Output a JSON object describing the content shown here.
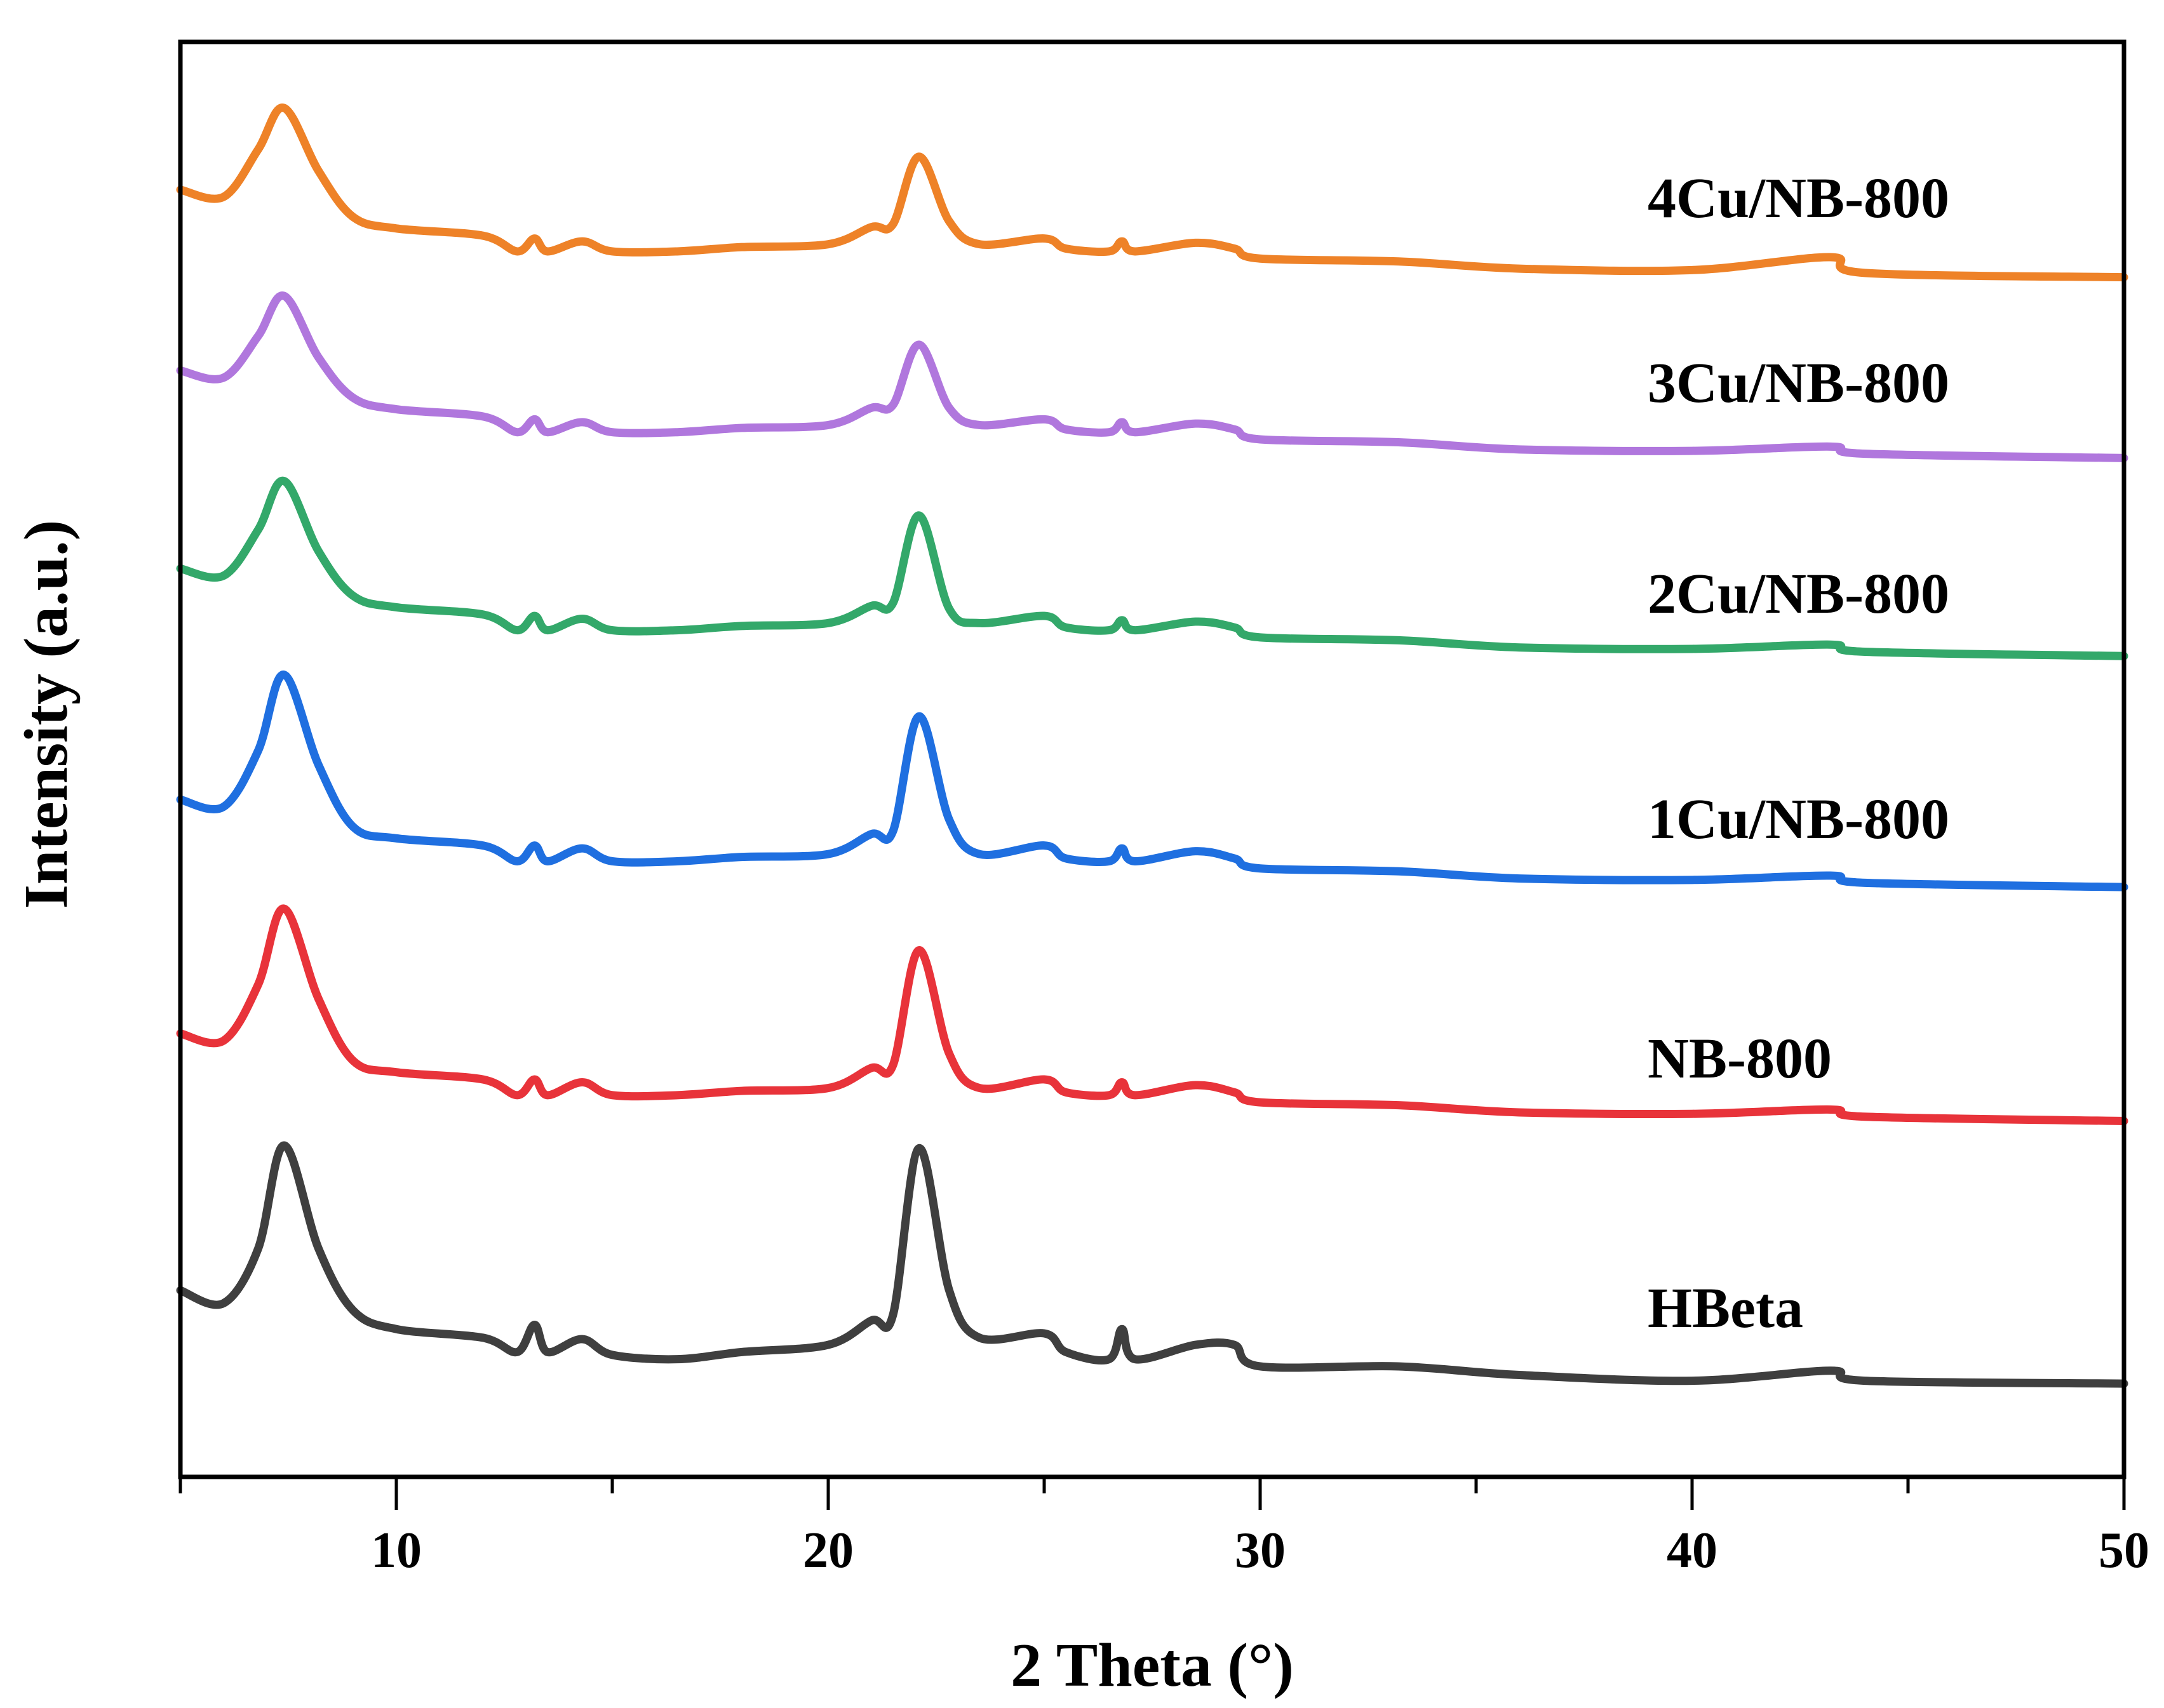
{
  "chart_data": {
    "type": "line",
    "title": "",
    "xlabel": "2 Theta (°)",
    "ylabel": "Intensity (a.u.)",
    "xlim": [
      5,
      50
    ],
    "ylim": [
      0,
      100
    ],
    "x_ticks": [
      10,
      20,
      30,
      40,
      50
    ],
    "x_minor_ticks": [
      5,
      15,
      25,
      35,
      45
    ],
    "y_ticks": [],
    "grid": false,
    "legend": "inline labels at right, above each trace",
    "x": [
      5,
      6,
      6.8,
      7.4,
      8.2,
      9,
      10,
      12,
      12.8,
      13.2,
      13.5,
      14.3,
      15,
      16.5,
      18,
      20,
      21,
      21.5,
      22.1,
      22.8,
      23.5,
      25,
      25.5,
      26.5,
      26.8,
      27.1,
      28.5,
      29.4,
      30,
      33.2,
      36,
      40,
      43.2,
      44,
      50
    ],
    "series": [
      {
        "name": "HBeta",
        "color": "#3f3f3f",
        "values": [
          13.0,
          12.1,
          15.9,
          23.1,
          15.9,
          11.6,
          10.3,
          9.7,
          8.7,
          10.6,
          8.7,
          9.6,
          8.5,
          8.2,
          8.7,
          9.2,
          10.9,
          11.3,
          22.9,
          13.0,
          9.7,
          10.0,
          8.7,
          8.2,
          10.3,
          8.2,
          9.2,
          9.2,
          7.7,
          7.7,
          7.1,
          6.7,
          7.4,
          6.7,
          6.5
        ]
      },
      {
        "name": "NB-800",
        "color": "#e8333a",
        "values": [
          30.9,
          30.4,
          34.3,
          39.6,
          33.3,
          29.0,
          28.2,
          27.7,
          26.6,
          27.7,
          26.6,
          27.5,
          26.6,
          26.6,
          26.9,
          27.1,
          28.5,
          28.7,
          36.7,
          29.5,
          27.1,
          27.7,
          26.8,
          26.6,
          27.5,
          26.6,
          27.3,
          26.8,
          26.1,
          25.9,
          25.4,
          25.3,
          25.6,
          25.1,
          24.8
        ]
      },
      {
        "name": "1Cu/NB-800",
        "color": "#1f6fe0",
        "values": [
          47.2,
          46.7,
          50.6,
          55.9,
          49.6,
          45.3,
          44.5,
          44.0,
          42.9,
          44.0,
          42.9,
          43.8,
          42.9,
          42.9,
          43.2,
          43.4,
          44.8,
          45.0,
          53.0,
          45.8,
          43.4,
          44.0,
          43.1,
          42.9,
          43.8,
          42.9,
          43.6,
          43.1,
          42.4,
          42.2,
          41.7,
          41.6,
          41.9,
          41.4,
          41.1
        ]
      },
      {
        "name": "2Cu/NB-800",
        "color": "#33a86a",
        "values": [
          63.3,
          62.8,
          66.0,
          69.4,
          64.5,
          61.4,
          60.6,
          60.1,
          59.0,
          60.0,
          59.0,
          59.8,
          59.0,
          59.0,
          59.3,
          59.5,
          60.7,
          60.9,
          67.0,
          60.5,
          59.5,
          60.0,
          59.2,
          59.0,
          59.7,
          59.0,
          59.6,
          59.2,
          58.5,
          58.3,
          57.8,
          57.7,
          58.0,
          57.5,
          57.2
        ]
      },
      {
        "name": "3Cu/NB-800",
        "color": "#b077dd",
        "values": [
          77.1,
          76.6,
          79.5,
          82.3,
          78.0,
          75.2,
          74.4,
          73.9,
          72.8,
          73.7,
          72.8,
          73.5,
          72.8,
          72.8,
          73.1,
          73.3,
          74.5,
          74.7,
          78.9,
          74.5,
          73.3,
          73.7,
          73.0,
          72.8,
          73.5,
          72.8,
          73.4,
          73.0,
          72.3,
          72.1,
          71.6,
          71.5,
          71.8,
          71.3,
          71.0
        ]
      },
      {
        "name": "4Cu/NB-800",
        "color": "#ee8228",
        "values": [
          89.7,
          89.2,
          92.5,
          95.4,
          91.0,
          87.8,
          87.0,
          86.5,
          85.4,
          86.3,
          85.4,
          86.1,
          85.4,
          85.4,
          85.7,
          85.9,
          87.1,
          87.3,
          92.0,
          87.5,
          85.9,
          86.3,
          85.6,
          85.4,
          86.1,
          85.4,
          86.0,
          85.6,
          84.9,
          84.7,
          84.2,
          84.1,
          85.0,
          83.9,
          83.6
        ]
      }
    ]
  }
}
